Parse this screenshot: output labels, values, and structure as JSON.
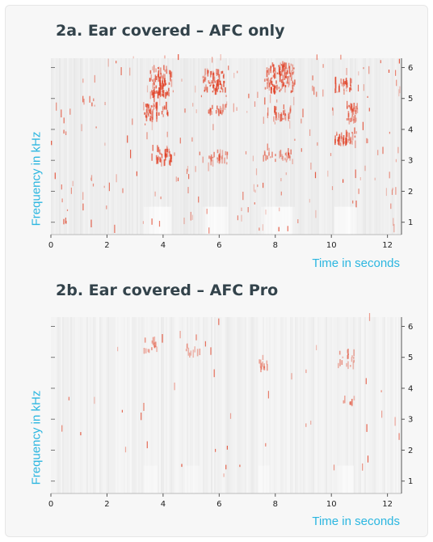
{
  "chart_data": [
    {
      "type": "heatmap",
      "title": "2a. Ear covered – AFC only",
      "xlabel": "Time in seconds",
      "ylabel": "Frequency in kHz",
      "xlim": [
        0,
        12.5
      ],
      "ylim": [
        0.6,
        6.3
      ],
      "xticks": [
        0,
        2,
        4,
        6,
        8,
        10,
        12
      ],
      "yticks": [
        1,
        2,
        3,
        4,
        5,
        6
      ],
      "y_axis_side": "right",
      "colors": {
        "background": "#eeeeee",
        "energy": "#e03a1e"
      },
      "high_energy_regions": [
        {
          "t": [
            3.5,
            4.3
          ],
          "f": [
            5.1,
            6.0
          ],
          "intensity": 0.9
        },
        {
          "t": [
            3.3,
            4.2
          ],
          "f": [
            4.3,
            4.8
          ],
          "intensity": 0.8
        },
        {
          "t": [
            3.7,
            4.3
          ],
          "f": [
            2.9,
            3.4
          ],
          "intensity": 0.8
        },
        {
          "t": [
            5.4,
            6.2
          ],
          "f": [
            5.2,
            5.9
          ],
          "intensity": 0.85
        },
        {
          "t": [
            5.6,
            6.3
          ],
          "f": [
            4.5,
            4.8
          ],
          "intensity": 0.6
        },
        {
          "t": [
            5.5,
            6.3
          ],
          "f": [
            2.9,
            3.3
          ],
          "intensity": 0.45
        },
        {
          "t": [
            7.6,
            8.7
          ],
          "f": [
            5.2,
            6.1
          ],
          "intensity": 0.85
        },
        {
          "t": [
            7.9,
            8.6
          ],
          "f": [
            4.3,
            4.7
          ],
          "intensity": 0.6
        },
        {
          "t": [
            7.5,
            8.6
          ],
          "f": [
            2.9,
            3.3
          ],
          "intensity": 0.45
        },
        {
          "t": [
            10.1,
            10.7
          ],
          "f": [
            5.2,
            5.6
          ],
          "intensity": 0.75
        },
        {
          "t": [
            10.5,
            10.9
          ],
          "f": [
            4.2,
            4.8
          ],
          "intensity": 0.7
        },
        {
          "t": [
            10.1,
            10.9
          ],
          "f": [
            3.5,
            3.9
          ],
          "intensity": 0.8
        }
      ],
      "noise_level": 0.16
    },
    {
      "type": "heatmap",
      "title": "2b. Ear covered – AFC Pro",
      "xlabel": "Time in seconds",
      "ylabel": "Frequency in kHz",
      "xlim": [
        0,
        12.5
      ],
      "ylim": [
        0.6,
        6.3
      ],
      "xticks": [
        0,
        2,
        4,
        6,
        8,
        10,
        12
      ],
      "yticks": [
        1,
        2,
        3,
        4,
        5,
        6
      ],
      "y_axis_side": "right",
      "colors": {
        "background": "#f5f5f5",
        "energy": "#e03a1e"
      },
      "high_energy_regions": [
        {
          "t": [
            3.3,
            3.8
          ],
          "f": [
            5.2,
            5.6
          ],
          "intensity": 0.35
        },
        {
          "t": [
            4.8,
            5.3
          ],
          "f": [
            5.0,
            5.4
          ],
          "intensity": 0.2
        },
        {
          "t": [
            7.4,
            7.8
          ],
          "f": [
            4.6,
            5.0
          ],
          "intensity": 0.3
        },
        {
          "t": [
            10.2,
            10.8
          ],
          "f": [
            4.7,
            5.2
          ],
          "intensity": 0.35
        },
        {
          "t": [
            10.4,
            10.8
          ],
          "f": [
            3.5,
            3.7
          ],
          "intensity": 0.3
        }
      ],
      "noise_level": 0.03
    }
  ]
}
